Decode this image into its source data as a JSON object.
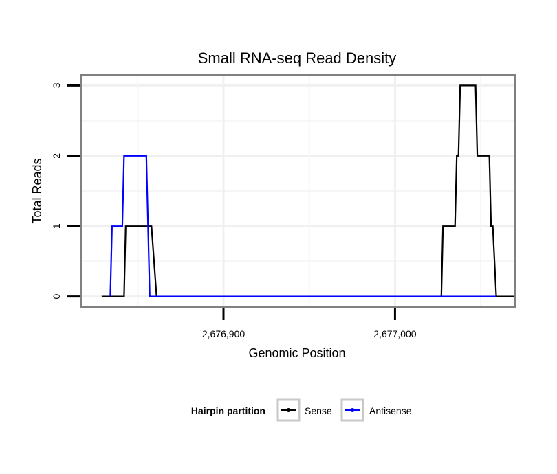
{
  "chart_data": {
    "type": "line",
    "title": "Small RNA-seq Read Density",
    "xlabel": "Genomic Position",
    "ylabel": "Total Reads",
    "xlim": [
      2676817,
      2677070
    ],
    "ylim": [
      -0.15,
      3.15
    ],
    "x_ticks": [
      {
        "value": 2676900,
        "label": "2,676,900"
      },
      {
        "value": 2677000,
        "label": "2,677,000"
      }
    ],
    "y_ticks": [
      {
        "value": 0,
        "label": "0"
      },
      {
        "value": 1,
        "label": "1"
      },
      {
        "value": 2,
        "label": "2"
      },
      {
        "value": 3,
        "label": "3"
      }
    ],
    "grid": true,
    "legend": {
      "title": "Hairpin partition",
      "position": "bottom"
    },
    "series": [
      {
        "name": "Sense",
        "color": "#000000",
        "x": [
          2676829,
          2676842,
          2676843,
          2676853,
          2676854,
          2676857,
          2676858,
          2676861,
          2677027,
          2677028,
          2677035,
          2677036,
          2677037,
          2677038,
          2677047,
          2677048,
          2677054,
          2677055,
          2677056,
          2677057,
          2677059,
          2677070
        ],
        "y": [
          0,
          0,
          1,
          1,
          1,
          1,
          1,
          0,
          0,
          1,
          1,
          2,
          2,
          3,
          3,
          2,
          2,
          2,
          1,
          1,
          0,
          0
        ]
      },
      {
        "name": "Antisense",
        "color": "#0000ff",
        "x": [
          2676834,
          2676835,
          2676841,
          2676842,
          2676855,
          2676856,
          2676857,
          2677059
        ],
        "y": [
          0,
          1,
          1,
          2,
          2,
          1,
          0,
          0
        ]
      }
    ]
  }
}
